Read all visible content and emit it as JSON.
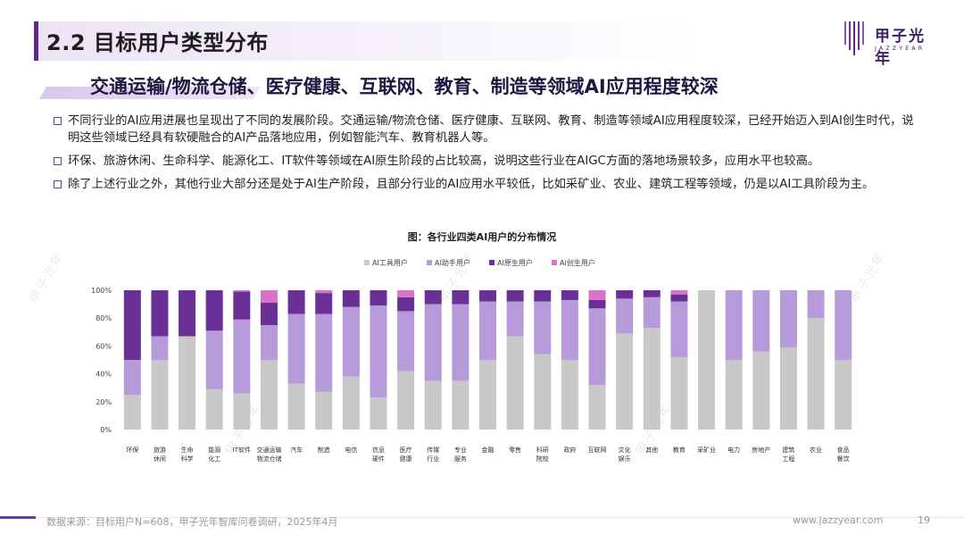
{
  "header": {
    "title": "2.2 目标用户类型分布",
    "logo_cn": "甲子光年",
    "logo_en": "JAZZYEAR"
  },
  "subtitle": "交通运输/物流仓储、医疗健康、互联网、教育、制造等领域AI应用程度较深",
  "bullets": [
    "不同行业的AI应用进展也呈现出了不同的发展阶段。交通运输/物流仓储、医疗健康、互联网、教育、制造等领域AI应用程度较深，已经开始迈入到AI创生时代，说明这些领域已经具有软硬融合的AI产品落地应用，例如智能汽车、教育机器人等。",
    "环保、旅游休闲、生命科学、能源化工、IT软件等领域在AI原生阶段的占比较高，说明这些行业在AIGC方面的落地场景较多，应用水平也较高。",
    "除了上述行业之外，其他行业大部分还是处于AI生产阶段，且部分行业的AI应用水平较低，比如采矿业、农业、建筑工程等领域，仍是以AI工具阶段为主。"
  ],
  "footer": {
    "source": "数据来源：目标用户N=608，甲子光年智库问卷调研，2025年4月",
    "url": "www.jazzyear.com",
    "page": "19"
  },
  "chart_data": {
    "type": "bar",
    "stacked": true,
    "title": "图：各行业四类AI用户的分布情况",
    "categories": [
      "环保",
      "旅游休闲",
      "生命科学",
      "能源化工",
      "IT软件",
      "交通运输物流仓储",
      "汽车",
      "制造",
      "电信",
      "信息硬件",
      "医疗健康",
      "传媒行业",
      "专业服务",
      "金融",
      "零售",
      "科研院校",
      "政府",
      "互联网",
      "文化娱乐",
      "其他",
      "教育",
      "采矿业",
      "电力",
      "房地产",
      "建筑工程",
      "农业",
      "食品餐饮"
    ],
    "category_lines": [
      [
        "环保"
      ],
      [
        "旅游",
        "休闲"
      ],
      [
        "生命",
        "科学"
      ],
      [
        "能源",
        "化工"
      ],
      [
        "IT软件"
      ],
      [
        "交通运输",
        "物流仓储"
      ],
      [
        "汽车"
      ],
      [
        "制造"
      ],
      [
        "电信"
      ],
      [
        "信息",
        "硬件"
      ],
      [
        "医疗",
        "健康"
      ],
      [
        "传媒",
        "行业"
      ],
      [
        "专业",
        "服务"
      ],
      [
        "金融"
      ],
      [
        "零售"
      ],
      [
        "科研",
        "院校"
      ],
      [
        "政府"
      ],
      [
        "互联网"
      ],
      [
        "文化",
        "娱乐"
      ],
      [
        "其他"
      ],
      [
        "教育"
      ],
      [
        "采矿业"
      ],
      [
        "电力"
      ],
      [
        "房地产"
      ],
      [
        "建筑",
        "工程"
      ],
      [
        "农业"
      ],
      [
        "食品",
        "餐饮"
      ]
    ],
    "series": [
      {
        "name": "AI工具用户",
        "color": "#c8c8c8",
        "values": [
          25,
          50,
          67,
          29,
          26,
          50,
          33,
          27,
          38,
          23,
          42,
          35,
          35,
          50,
          67,
          54,
          50,
          32,
          69,
          73,
          52,
          100,
          50,
          56,
          59,
          80,
          50
        ]
      },
      {
        "name": "AI助手用户",
        "color": "#b79ad9",
        "values": [
          25,
          17,
          0,
          42,
          53,
          25,
          50,
          56,
          50,
          66,
          43,
          55,
          55,
          42,
          25,
          38,
          43,
          55,
          25,
          22,
          40,
          0,
          50,
          44,
          41,
          20,
          50
        ]
      },
      {
        "name": "AI原生用户",
        "color": "#6a3096",
        "values": [
          50,
          33,
          33,
          29,
          20,
          16,
          17,
          15,
          12,
          11,
          10,
          10,
          10,
          8,
          8,
          8,
          7,
          6,
          6,
          5,
          5,
          0,
          0,
          0,
          0,
          0,
          0
        ]
      },
      {
        "name": "AI创生用户",
        "color": "#d873c7",
        "values": [
          0,
          0,
          0,
          0,
          1,
          9,
          0,
          2,
          0,
          0,
          5,
          0,
          0,
          0,
          0,
          0,
          0,
          7,
          0,
          0,
          3,
          0,
          0,
          0,
          0,
          0,
          0
        ]
      }
    ],
    "yticks": [
      "0%",
      "20%",
      "40%",
      "60%",
      "80%",
      "100%"
    ],
    "ylim": [
      0,
      100
    ],
    "legend_position": "top"
  }
}
